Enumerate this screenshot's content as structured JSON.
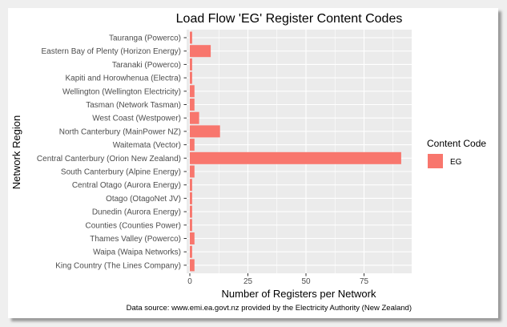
{
  "chart_data": {
    "type": "bar",
    "orientation": "horizontal",
    "title": "Load Flow 'EG' Register Content Codes",
    "xlabel": "Number of Registers per Network",
    "ylabel": "Network Region",
    "caption": "Data source: www.emi.ea.govt.nz provided by the Electricity Authority (New Zealand)",
    "categories": [
      "Tauranga (Powerco)",
      "Eastern Bay of Plenty (Horizon Energy)",
      "Taranaki (Powerco)",
      "Kapiti and Horowhenua (Electra)",
      "Wellington (Wellington Electricity)",
      "Tasman (Network Tasman)",
      "West Coast (Westpower)",
      "North Canterbury (MainPower NZ)",
      "Waitemata (Vector)",
      "Central Canterbury (Orion New Zealand)",
      "South Canterbury (Alpine Energy)",
      "Central Otago (Aurora Energy)",
      "Otago (OtagoNet JV)",
      "Dunedin (Aurora Energy)",
      "Counties (Counties Power)",
      "Thames Valley (Powerco)",
      "Waipa (Waipa Networks)",
      "King Country (The Lines Company)"
    ],
    "series": [
      {
        "name": "EG",
        "color": "#F8766D",
        "values": [
          1,
          9,
          1,
          1,
          2,
          2,
          4,
          13,
          2,
          91,
          2,
          1,
          1,
          1,
          1,
          2,
          1,
          2
        ]
      }
    ],
    "xticks": [
      0,
      25,
      50,
      75
    ],
    "xlim": [
      0,
      95.5
    ],
    "grid": true,
    "legend": {
      "title": "Content Code",
      "position": "right",
      "entries": [
        {
          "label": "EG",
          "color": "#F8766D"
        }
      ]
    },
    "colors": {
      "panel": "#EBEBEB",
      "grid": "#FFFFFF",
      "axis_text": "#4D4D4D",
      "tick": "#333333"
    }
  }
}
